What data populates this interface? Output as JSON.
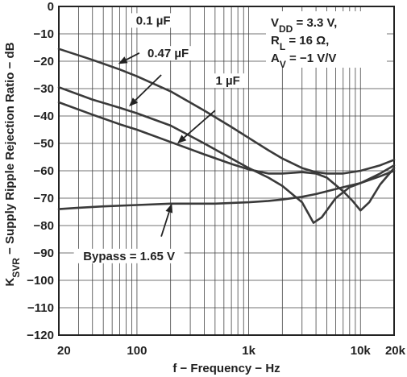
{
  "chart_data": {
    "type": "line",
    "title": "",
    "xlabel": "f − Frequency − Hz",
    "ylabel_main": "K",
    "ylabel_sub": "SVR",
    "ylabel_rest": " − Supply Ripple Rejection Ratio − dB",
    "x_scale": "log",
    "xlim": [
      20,
      20000
    ],
    "ylim": [
      -120,
      0
    ],
    "grid": true,
    "x_ticks": [
      {
        "value": 20,
        "label": "20"
      },
      {
        "value": 100,
        "label": "100"
      },
      {
        "value": 1000,
        "label": "1k"
      },
      {
        "value": 10000,
        "label": "10k"
      },
      {
        "value": 20000,
        "label": "20k"
      }
    ],
    "y_ticks": [
      {
        "value": 0,
        "label": "0"
      },
      {
        "value": -10,
        "label": "−10"
      },
      {
        "value": -20,
        "label": "−20"
      },
      {
        "value": -30,
        "label": "−30"
      },
      {
        "value": -40,
        "label": "−40"
      },
      {
        "value": -50,
        "label": "−50"
      },
      {
        "value": -60,
        "label": "−60"
      },
      {
        "value": -70,
        "label": "−70"
      },
      {
        "value": -80,
        "label": "−80"
      },
      {
        "value": -90,
        "label": "−90"
      },
      {
        "value": -100,
        "label": "−100"
      },
      {
        "value": -110,
        "label": "−110"
      },
      {
        "value": -120,
        "label": "−120"
      }
    ],
    "conditions": {
      "vdd": {
        "main": "V",
        "sub": "DD",
        "rest": " = 3.3 V,"
      },
      "rl": {
        "main": "R",
        "sub": "L",
        "rest": " = 16 Ω,"
      },
      "av": {
        "main": "A",
        "sub": "V",
        "rest": " = −1 V/V"
      }
    },
    "series": [
      {
        "name": "0.1 µF",
        "label_at": [
          140,
          -6
        ],
        "arrow_from": [
          105,
          -17
        ],
        "arrow_to": [
          68,
          -21
        ],
        "x": [
          20,
          40,
          70,
          100,
          200,
          400,
          700,
          1000,
          1500,
          2000,
          3000,
          4000,
          5000,
          7000,
          10000,
          15000,
          20000
        ],
        "y": [
          -15.5,
          -19.5,
          -23,
          -25.5,
          -31,
          -38,
          -44,
          -48,
          -52.5,
          -55.5,
          -59,
          -60.5,
          -61,
          -61,
          -60,
          -58,
          -56
        ]
      },
      {
        "name": "0.47 µF",
        "label_at": [
          190,
          -18
        ],
        "arrow_from": [
          165,
          -25
        ],
        "arrow_to": [
          85,
          -36.5
        ],
        "x": [
          20,
          40,
          70,
          100,
          200,
          400,
          700,
          1000,
          1500,
          2000,
          3000,
          3800,
          4500,
          6000,
          8000,
          10000,
          15000,
          20000
        ],
        "y": [
          -29.5,
          -34,
          -37,
          -39,
          -43.5,
          -50,
          -55.5,
          -59,
          -62.5,
          -65.5,
          -71.5,
          -79,
          -77,
          -70,
          -66,
          -64.5,
          -61,
          -58
        ]
      },
      {
        "name": "1 µF",
        "label_at": [
          650,
          -28
        ],
        "arrow_from": [
          500,
          -38
        ],
        "arrow_to": [
          230,
          -50
        ],
        "x": [
          20,
          40,
          70,
          100,
          200,
          400,
          700,
          1000,
          1500,
          2000,
          3000,
          4000,
          5000,
          7000,
          8500,
          10000,
          12000,
          15000,
          20000
        ],
        "y": [
          -35,
          -39.5,
          -43,
          -45,
          -49.5,
          -54,
          -57.5,
          -59.5,
          -61,
          -61,
          -60.5,
          -61,
          -62.5,
          -67.5,
          -71,
          -74.5,
          -71.5,
          -65,
          -59
        ]
      },
      {
        "name": "Bypass = 1.65 V",
        "label_at": [
          85,
          -92
        ],
        "arrow_from": [
          165,
          -84
        ],
        "arrow_to": [
          205,
          -72
        ],
        "x": [
          20,
          30,
          50,
          100,
          200,
          500,
          1000,
          1500,
          2000,
          3000,
          4000,
          5000,
          7000,
          10000,
          15000,
          20000
        ],
        "y": [
          -74,
          -73.5,
          -73,
          -72.5,
          -72,
          -72,
          -71.5,
          -71,
          -70.5,
          -69.5,
          -68.5,
          -67.5,
          -66,
          -64.5,
          -62,
          -60
        ]
      }
    ]
  }
}
